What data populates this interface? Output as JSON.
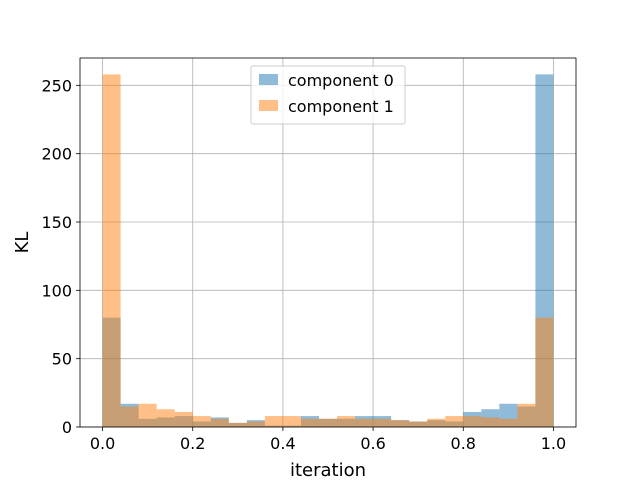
{
  "chart_data": {
    "type": "bar",
    "subtype": "overlaid-histogram",
    "xlabel": "iteration",
    "ylabel": "KL",
    "xlim": [
      -0.05,
      1.05
    ],
    "ylim": [
      0,
      270
    ],
    "xticks": [
      "0.0",
      "0.2",
      "0.4",
      "0.6",
      "0.8",
      "1.0"
    ],
    "yticks": [
      "0",
      "50",
      "100",
      "150",
      "200",
      "250"
    ],
    "grid": true,
    "legend_position": "top-center",
    "bin_edges": [
      0.0,
      0.04,
      0.08,
      0.12,
      0.16,
      0.2,
      0.24,
      0.28,
      0.32,
      0.36,
      0.4,
      0.44,
      0.48,
      0.52,
      0.56,
      0.6,
      0.64,
      0.68,
      0.72,
      0.76,
      0.8,
      0.84,
      0.88,
      0.92,
      0.96,
      1.0
    ],
    "series": [
      {
        "name": "component 0",
        "color": "#1f77b4",
        "values": [
          80,
          17,
          6,
          7,
          8,
          4,
          7,
          3,
          5,
          1,
          1,
          8,
          6,
          6,
          8,
          8,
          5,
          4,
          5,
          4,
          11,
          13,
          17,
          15,
          258
        ]
      },
      {
        "name": "component 1",
        "color": "#ff7f0e",
        "values": [
          258,
          15,
          17,
          13,
          11,
          8,
          6,
          3,
          4,
          8,
          8,
          6,
          6,
          8,
          6,
          6,
          5,
          4,
          6,
          8,
          8,
          7,
          6,
          17,
          80
        ]
      }
    ]
  }
}
